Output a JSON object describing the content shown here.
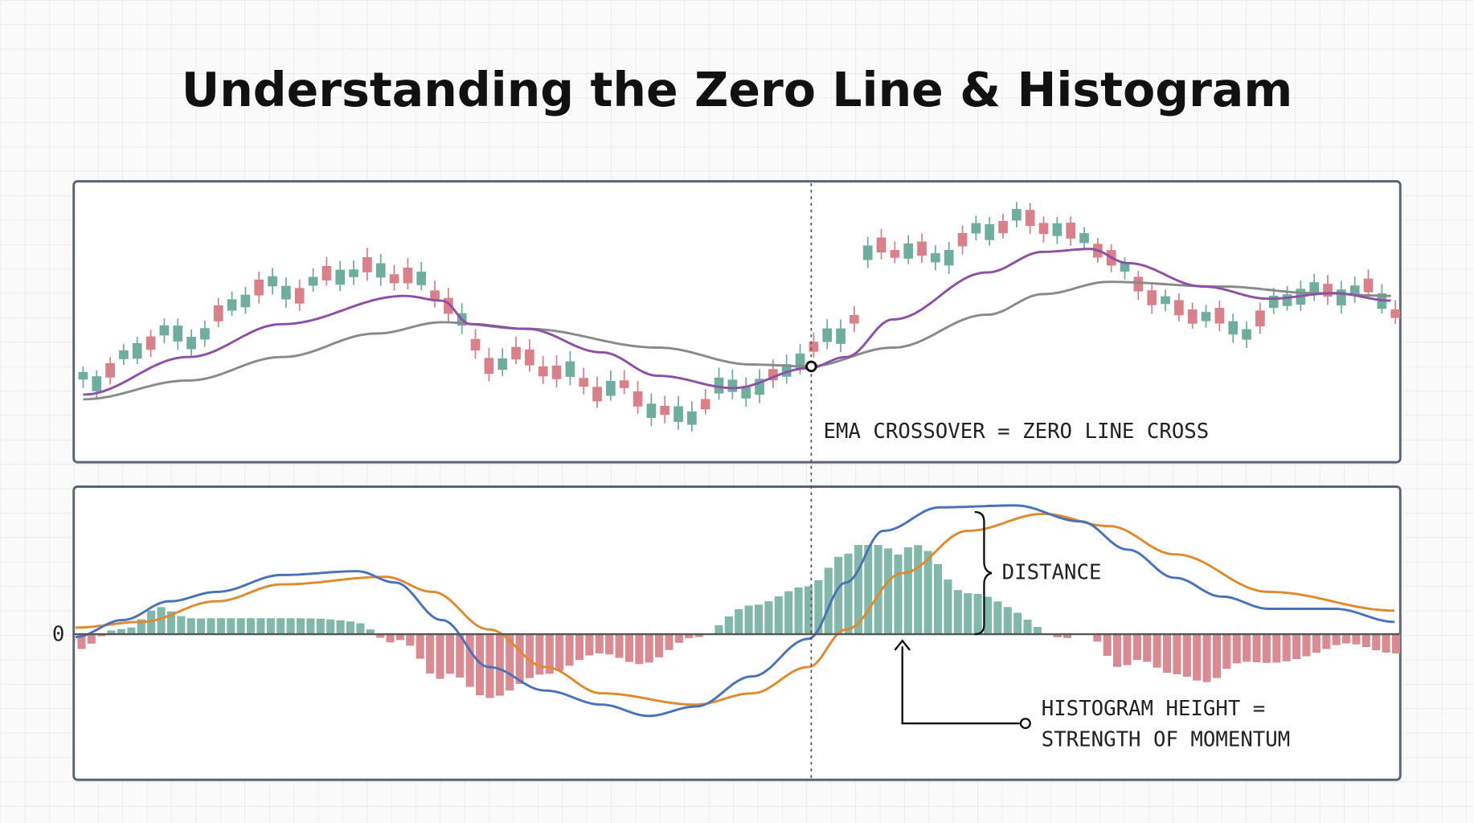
{
  "title": "Understanding the Zero Line & Histogram",
  "annotations": {
    "crossover": "EMA CROSSOVER = ZERO LINE CROSS",
    "zero": "0",
    "distance": "DISTANCE",
    "histogram": [
      "HISTOGRAM HEIGHT =",
      "STRENGTH OF MOMENTUM"
    ]
  }
}
